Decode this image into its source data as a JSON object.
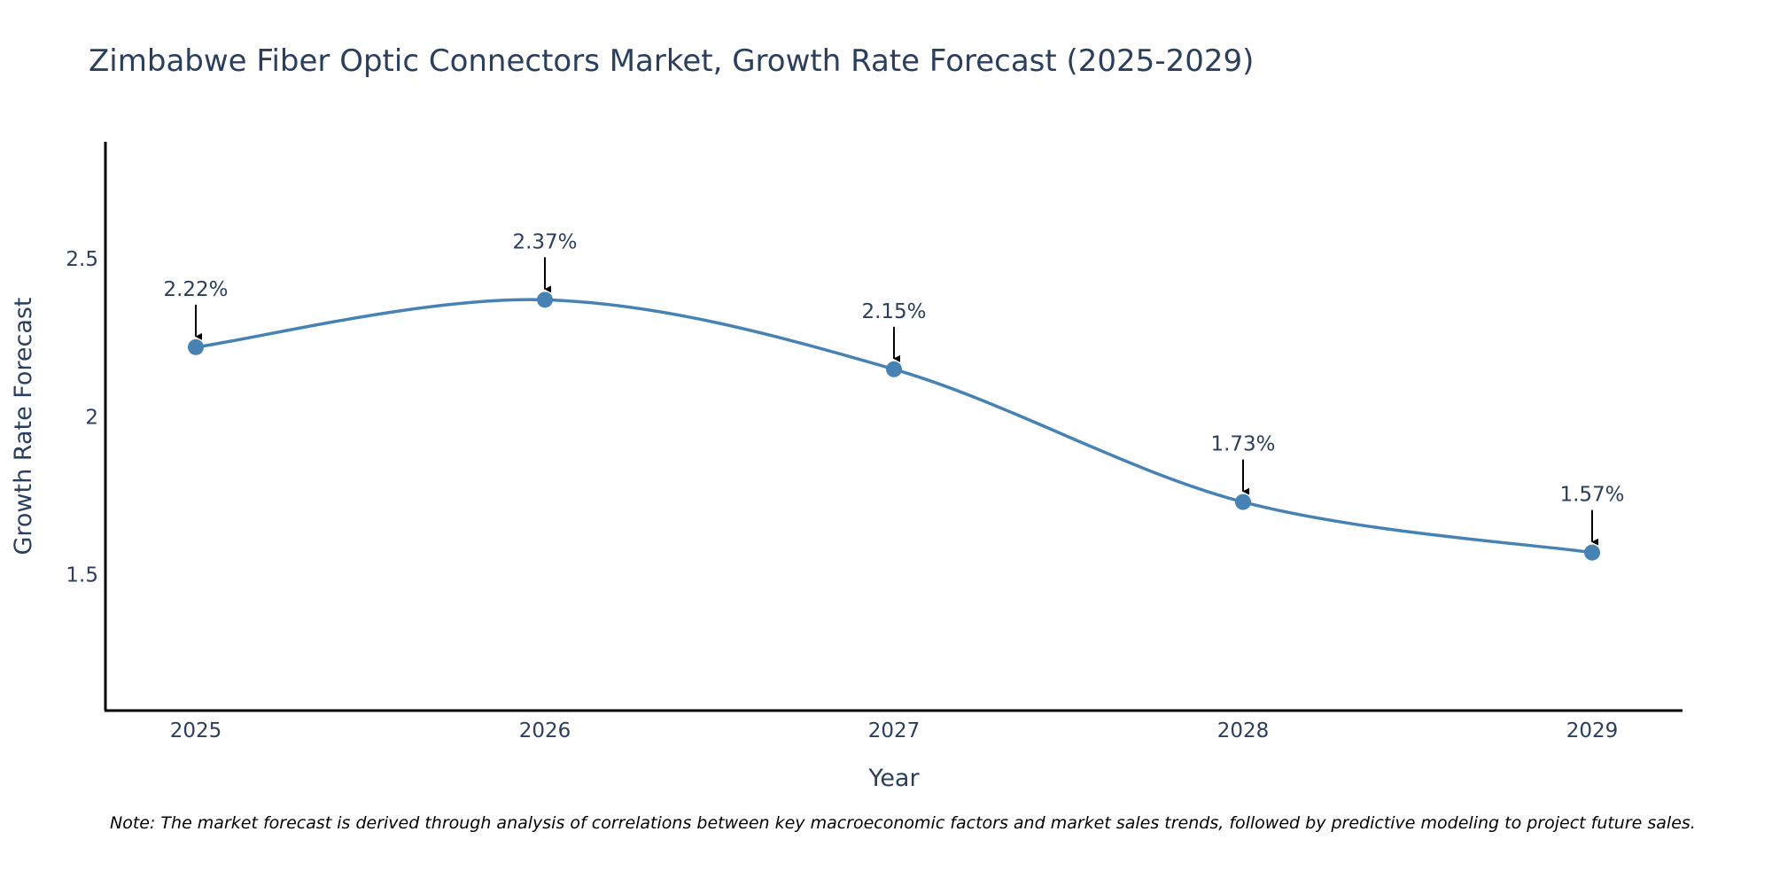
{
  "chart_data": {
    "type": "line",
    "title": "Zimbabwe Fiber Optic Connectors Market, Growth Rate Forecast (2025-2029)",
    "xlabel": "Year",
    "ylabel": "Growth Rate Forecast",
    "categories": [
      "2025",
      "2026",
      "2027",
      "2028",
      "2029"
    ],
    "values": [
      2.22,
      2.37,
      2.15,
      1.73,
      1.57
    ],
    "data_labels": [
      "2.22%",
      "2.37%",
      "2.15%",
      "1.73%",
      "1.57%"
    ],
    "yticks": [
      1.5,
      2,
      2.5
    ],
    "ytick_labels": [
      "1.5",
      "2",
      "2.5"
    ],
    "ylim": [
      1.07,
      2.87
    ],
    "grid": false,
    "line_color": "#4682b4",
    "marker_color": "#4682b4",
    "arrow_color": "#000000"
  },
  "note": "Note: The market forecast is derived through analysis of correlations between key macroeconomic factors and market sales trends, followed by predictive modeling to project future sales."
}
